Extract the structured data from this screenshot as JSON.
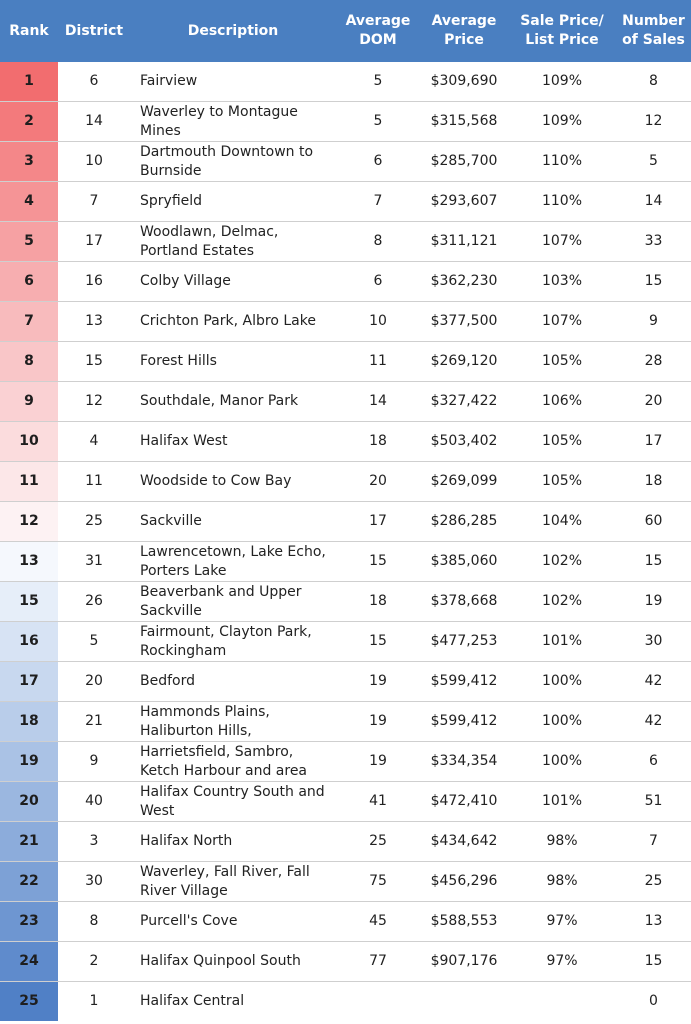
{
  "headers": {
    "rank": "Rank",
    "district": "District",
    "description": "Description",
    "avg_dom_1": "Average",
    "avg_dom_2": "DOM",
    "avg_price_1": "Average",
    "avg_price_2": "Price",
    "ratio_1": "Sale Price/",
    "ratio_2": "List Price",
    "sales_1": "Number",
    "sales_2": "of Sales"
  },
  "colors": {
    "header_bg": "#4a7fc1",
    "rank_top": "#f26b6b",
    "rank_bottom": "#4a7fc1"
  },
  "rows": [
    {
      "rank": "1",
      "district": "6",
      "description": "Fairview",
      "dom": "5",
      "price": "$309,690",
      "ratio": "109%",
      "sales": "8",
      "rank_bg": "#f26d6f"
    },
    {
      "rank": "2",
      "district": "14",
      "description": "Waverley to Montague Mines",
      "dom": "5",
      "price": "$315,568",
      "ratio": "109%",
      "sales": "12",
      "rank_bg": "#f37a7c"
    },
    {
      "rank": "3",
      "district": "10",
      "description": "Dartmouth Downtown to Burnside",
      "dom": "6",
      "price": "$285,700",
      "ratio": "110%",
      "sales": "5",
      "rank_bg": "#f48789"
    },
    {
      "rank": "4",
      "district": "7",
      "description": "Spryfield",
      "dom": "7",
      "price": "$293,607",
      "ratio": "110%",
      "sales": "14",
      "rank_bg": "#f59496"
    },
    {
      "rank": "5",
      "district": "17",
      "description": "Woodlawn, Delmac, Portland Estates",
      "dom": "8",
      "price": "$311,121",
      "ratio": "107%",
      "sales": "33",
      "rank_bg": "#f6a1a3"
    },
    {
      "rank": "6",
      "district": "16",
      "description": "Colby Village",
      "dom": "6",
      "price": "$362,230",
      "ratio": "103%",
      "sales": "15",
      "rank_bg": "#f7aeb0"
    },
    {
      "rank": "7",
      "district": "13",
      "description": "Crichton Park, Albro Lake",
      "dom": "10",
      "price": "$377,500",
      "ratio": "107%",
      "sales": "9",
      "rank_bg": "#f8bbbd"
    },
    {
      "rank": "8",
      "district": "15",
      "description": "Forest Hills",
      "dom": "11",
      "price": "$269,120",
      "ratio": "105%",
      "sales": "28",
      "rank_bg": "#f9c6c8"
    },
    {
      "rank": "9",
      "district": "12",
      "description": "Southdale, Manor Park",
      "dom": "14",
      "price": "$327,422",
      "ratio": "106%",
      "sales": "20",
      "rank_bg": "#fad1d3"
    },
    {
      "rank": "10",
      "district": "4",
      "description": "Halifax West",
      "dom": "18",
      "price": "$503,402",
      "ratio": "105%",
      "sales": "17",
      "rank_bg": "#fbdcdd"
    },
    {
      "rank": "11",
      "district": "11",
      "description": "Woodside to Cow Bay",
      "dom": "20",
      "price": "$269,099",
      "ratio": "105%",
      "sales": "18",
      "rank_bg": "#fce7e8"
    },
    {
      "rank": "12",
      "district": "25",
      "description": "Sackville",
      "dom": "17",
      "price": "$286,285",
      "ratio": "104%",
      "sales": "60",
      "rank_bg": "#fdf2f3"
    },
    {
      "rank": "13",
      "district": "31",
      "description": "Lawrencetown, Lake Echo, Porters Lake",
      "dom": "15",
      "price": "$385,060",
      "ratio": "102%",
      "sales": "15",
      "rank_bg": "#f5f8fd"
    },
    {
      "rank": "15",
      "district": "26",
      "description": "Beaverbank and Upper Sackville",
      "dom": "18",
      "price": "$378,668",
      "ratio": "102%",
      "sales": "19",
      "rank_bg": "#e6eef9"
    },
    {
      "rank": "16",
      "district": "5",
      "description": "Fairmount, Clayton Park, Rockingham",
      "dom": "15",
      "price": "$477,253",
      "ratio": "101%",
      "sales": "30",
      "rank_bg": "#d7e3f4"
    },
    {
      "rank": "17",
      "district": "20",
      "description": "Bedford",
      "dom": "19",
      "price": "$599,412",
      "ratio": "100%",
      "sales": "42",
      "rank_bg": "#c8d8ef"
    },
    {
      "rank": "18",
      "district": "21",
      "description": "Hammonds Plains, Haliburton Hills,",
      "dom": "19",
      "price": "$599,412",
      "ratio": "100%",
      "sales": "42",
      "rank_bg": "#b9cdea"
    },
    {
      "rank": "19",
      "district": "9",
      "description": "Harrietsfield, Sambro, Ketch Harbour and area",
      "dom": "19",
      "price": "$334,354",
      "ratio": "100%",
      "sales": "6",
      "rank_bg": "#aac2e5"
    },
    {
      "rank": "20",
      "district": "40",
      "description": "Halifax Country South and West",
      "dom": "41",
      "price": "$472,410",
      "ratio": "101%",
      "sales": "51",
      "rank_bg": "#9bb7e0"
    },
    {
      "rank": "21",
      "district": "3",
      "description": "Halifax North",
      "dom": "25",
      "price": "$434,642",
      "ratio": "98%",
      "sales": "7",
      "rank_bg": "#8cacdb"
    },
    {
      "rank": "22",
      "district": "30",
      "description": "Waverley, Fall River, Fall River Village",
      "dom": "75",
      "price": "$456,296",
      "ratio": "98%",
      "sales": "25",
      "rank_bg": "#7da1d6"
    },
    {
      "rank": "23",
      "district": "8",
      "description": "Purcell's Cove",
      "dom": "45",
      "price": "$588,553",
      "ratio": "97%",
      "sales": "13",
      "rank_bg": "#6e96d1"
    },
    {
      "rank": "24",
      "district": "2",
      "description": "Halifax Quinpool South",
      "dom": "77",
      "price": "$907,176",
      "ratio": "97%",
      "sales": "15",
      "rank_bg": "#5f8bcc"
    },
    {
      "rank": "25",
      "district": "1",
      "description": "Halifax Central",
      "dom": "",
      "price": "",
      "ratio": "",
      "sales": "0",
      "rank_bg": "#5080c6"
    }
  ]
}
